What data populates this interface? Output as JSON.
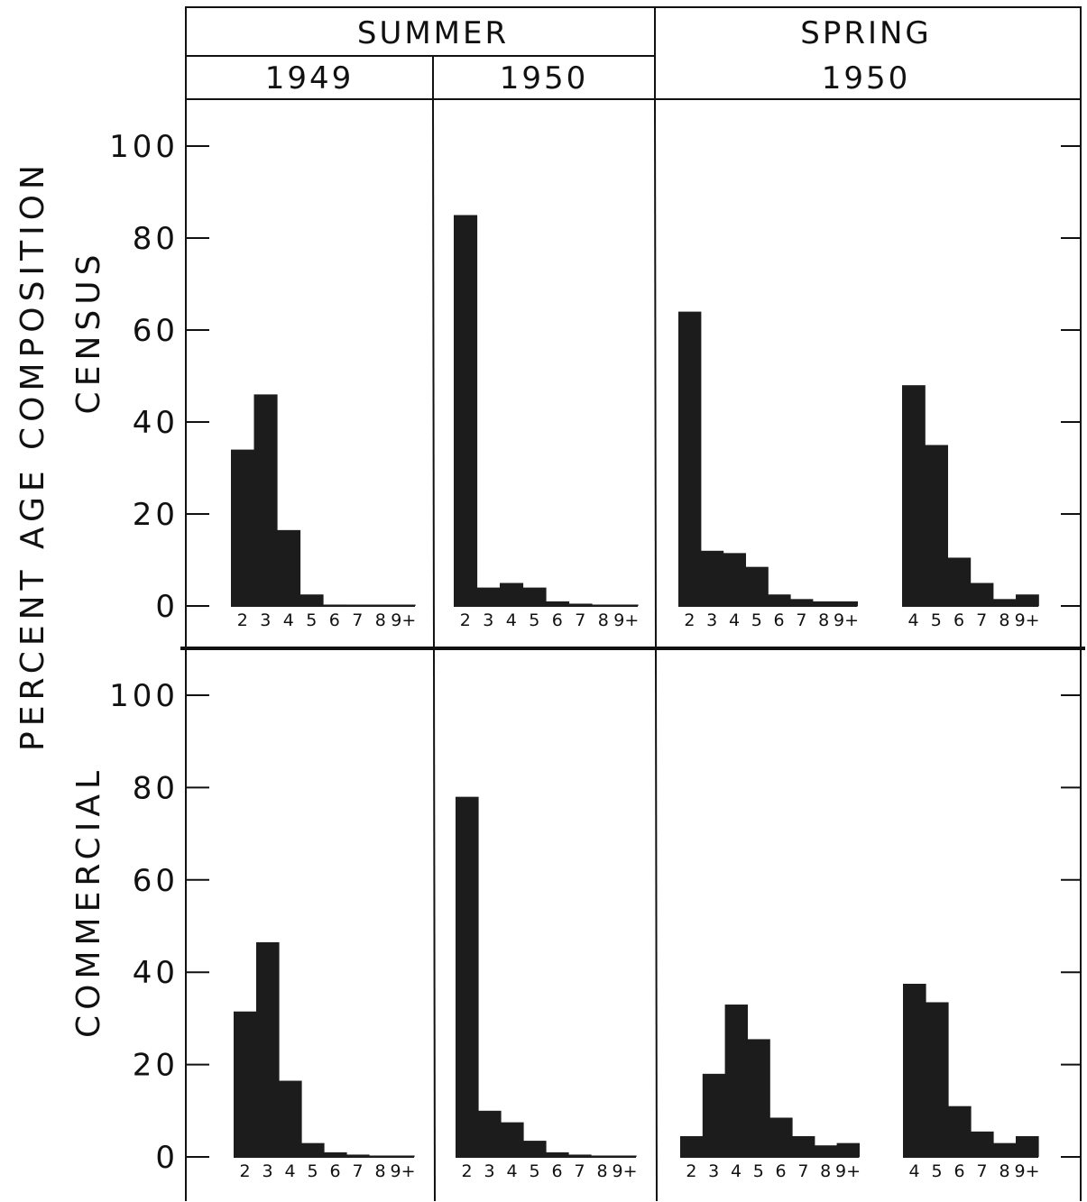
{
  "labels": {
    "y_outer": "PERCENT  AGE  COMPOSITION",
    "row_top": "CENSUS",
    "row_bottom": "COMMERCIAL",
    "season_summer": "SUMMER",
    "season_spring": "SPRING",
    "year_1949": "1949",
    "year_1950_summer": "1950",
    "year_1950_spring": "1950"
  },
  "y_ticks": [
    "100",
    "80",
    "60",
    "40",
    "20",
    "0"
  ],
  "chart_data": [
    {
      "type": "bar",
      "row": "CENSUS",
      "season": "SUMMER",
      "year": "1949",
      "categories": [
        "2",
        "3",
        "4",
        "5",
        "6",
        "7",
        "8",
        "9+"
      ],
      "values": [
        34,
        46,
        16.5,
        2.5,
        0.3,
        0.2,
        0.1,
        0.1
      ],
      "ylim": [
        0,
        110
      ]
    },
    {
      "type": "bar",
      "row": "CENSUS",
      "season": "SUMMER",
      "year": "1950",
      "categories": [
        "2",
        "3",
        "4",
        "5",
        "6",
        "7",
        "8",
        "9+"
      ],
      "values": [
        85,
        4,
        5,
        4,
        1,
        0.5,
        0.3,
        0.3
      ],
      "ylim": [
        0,
        110
      ]
    },
    {
      "type": "bar",
      "row": "CENSUS",
      "season": "SPRING",
      "year": "1950",
      "categories": [
        "2",
        "3",
        "4",
        "5",
        "6",
        "7",
        "8",
        "9+"
      ],
      "values": [
        64,
        12,
        11.5,
        8.5,
        2.5,
        1.5,
        1,
        1
      ],
      "ylim": [
        0,
        110
      ]
    },
    {
      "type": "bar",
      "row": "CENSUS",
      "season": "SPRING",
      "year": "1950",
      "categories": [
        "4",
        "5",
        "6",
        "7",
        "8",
        "9+"
      ],
      "values": [
        48,
        35,
        10.5,
        5,
        1.5,
        2.5
      ],
      "ylim": [
        0,
        110
      ]
    },
    {
      "type": "bar",
      "row": "COMMERCIAL",
      "season": "SUMMER",
      "year": "1949",
      "categories": [
        "2",
        "3",
        "4",
        "5",
        "6",
        "7",
        "8",
        "9+"
      ],
      "values": [
        31.5,
        46.5,
        16.5,
        3,
        1,
        0.5,
        0.3,
        0.3
      ],
      "ylim": [
        0,
        110
      ]
    },
    {
      "type": "bar",
      "row": "COMMERCIAL",
      "season": "SUMMER",
      "year": "1950",
      "categories": [
        "2",
        "3",
        "4",
        "5",
        "6",
        "7",
        "8",
        "9+"
      ],
      "values": [
        78,
        10,
        7.5,
        3.5,
        1,
        0.5,
        0.3,
        0.3
      ],
      "ylim": [
        0,
        110
      ]
    },
    {
      "type": "bar",
      "row": "COMMERCIAL",
      "season": "SPRING",
      "year": "1950",
      "categories": [
        "2",
        "3",
        "4",
        "5",
        "6",
        "7",
        "8",
        "9+"
      ],
      "values": [
        4.5,
        18,
        33,
        25.5,
        8.5,
        4.5,
        2.5,
        3
      ],
      "ylim": [
        0,
        110
      ]
    },
    {
      "type": "bar",
      "row": "COMMERCIAL",
      "season": "SPRING",
      "year": "1950",
      "categories": [
        "4",
        "5",
        "6",
        "7",
        "8",
        "9+"
      ],
      "values": [
        37.5,
        33.5,
        11,
        5.5,
        3,
        4.5
      ],
      "ylim": [
        0,
        110
      ]
    }
  ]
}
